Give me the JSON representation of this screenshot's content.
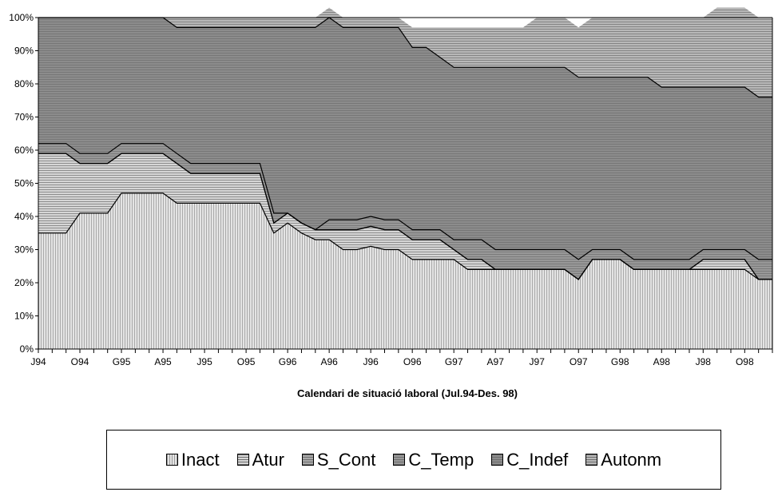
{
  "chart_data": {
    "type": "area",
    "stacked": true,
    "percent": true,
    "xlabel": "Calendari de situació laboral (Jul.94-Des. 98)",
    "ylabel": "",
    "ylim": [
      0,
      100
    ],
    "yticks": [
      "0%",
      "10%",
      "20%",
      "30%",
      "40%",
      "50%",
      "60%",
      "70%",
      "80%",
      "90%",
      "100%"
    ],
    "x_tick_labels": [
      "J94",
      "O94",
      "G95",
      "A95",
      "J95",
      "O95",
      "G96",
      "A96",
      "J96",
      "O96",
      "G97",
      "A97",
      "J97",
      "O97",
      "G98",
      "A98",
      "J98",
      "O98"
    ],
    "n_points": 54,
    "legend_position": "bottom",
    "series": [
      {
        "name": "Inact",
        "color": "#e4e4e4",
        "values": [
          35,
          35,
          35,
          41,
          41,
          41,
          47,
          47,
          47,
          47,
          44,
          44,
          44,
          44,
          44,
          44,
          44,
          35,
          38,
          35,
          33,
          33,
          30,
          30,
          31,
          30,
          30,
          27,
          27,
          27,
          27,
          24,
          24,
          24,
          24,
          24,
          24,
          24,
          24,
          21,
          27,
          27,
          27,
          24,
          24,
          24,
          24,
          24,
          24,
          24,
          24,
          24,
          21,
          21
        ]
      },
      {
        "name": "Atur",
        "color": "#d6d6d6",
        "values": [
          24,
          24,
          24,
          15,
          15,
          15,
          12,
          12,
          12,
          12,
          12,
          9,
          9,
          9,
          9,
          9,
          9,
          3,
          3,
          3,
          3,
          3,
          6,
          6,
          6,
          6,
          6,
          6,
          6,
          6,
          3,
          3,
          3,
          0,
          0,
          0,
          0,
          0,
          0,
          0,
          0,
          0,
          0,
          0,
          0,
          0,
          0,
          0,
          3,
          3,
          3,
          3,
          0,
          0
        ]
      },
      {
        "name": "S_Cont",
        "color": "#a8a8a8",
        "values": [
          0,
          0,
          0,
          0,
          0,
          0,
          0,
          0,
          0,
          0,
          0,
          0,
          0,
          0,
          0,
          0,
          0,
          0,
          0,
          0,
          0,
          0,
          0,
          0,
          0,
          0,
          0,
          0,
          0,
          0,
          0,
          0,
          0,
          0,
          0,
          0,
          0,
          0,
          0,
          0,
          0,
          0,
          0,
          0,
          0,
          0,
          0,
          0,
          0,
          0,
          0,
          0,
          0,
          0
        ]
      },
      {
        "name": "C_Temp",
        "color": "#989898",
        "values": [
          3,
          3,
          3,
          3,
          3,
          3,
          3,
          3,
          3,
          3,
          3,
          3,
          3,
          3,
          3,
          3,
          3,
          3,
          0,
          0,
          0,
          3,
          3,
          3,
          3,
          3,
          3,
          3,
          3,
          3,
          3,
          6,
          6,
          6,
          6,
          6,
          6,
          6,
          6,
          6,
          3,
          3,
          3,
          3,
          3,
          3,
          3,
          3,
          3,
          3,
          3,
          3,
          6,
          6
        ]
      },
      {
        "name": "C_Indef",
        "color": "#8c8c8c",
        "values": [
          38,
          38,
          38,
          41,
          41,
          41,
          38,
          38,
          38,
          38,
          38,
          41,
          41,
          41,
          41,
          41,
          41,
          56,
          56,
          59,
          61,
          61,
          58,
          58,
          57,
          58,
          58,
          55,
          55,
          52,
          52,
          52,
          52,
          55,
          55,
          55,
          55,
          55,
          55,
          55,
          52,
          52,
          52,
          55,
          55,
          52,
          52,
          52,
          49,
          49,
          49,
          49,
          49,
          49
        ]
      },
      {
        "name": "Autonm",
        "color": "#b8b8b8",
        "values": [
          0,
          0,
          0,
          0,
          0,
          0,
          0,
          0,
          0,
          0,
          3,
          3,
          3,
          3,
          3,
          3,
          3,
          3,
          3,
          3,
          3,
          3,
          3,
          3,
          3,
          3,
          3,
          6,
          6,
          9,
          12,
          12,
          12,
          12,
          12,
          12,
          15,
          15,
          15,
          15,
          18,
          18,
          18,
          18,
          18,
          21,
          21,
          21,
          21,
          24,
          24,
          24,
          24,
          24
        ]
      }
    ]
  }
}
